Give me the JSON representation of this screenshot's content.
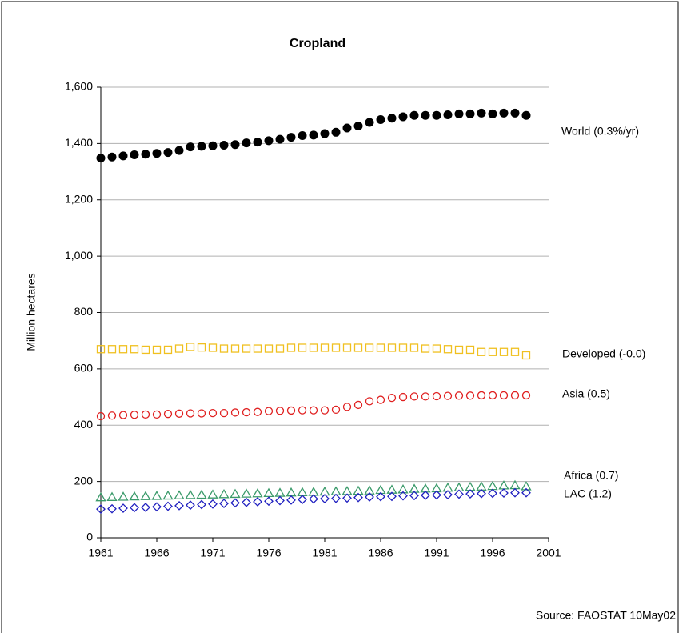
{
  "chart_data": {
    "type": "scatter",
    "title": "Cropland",
    "y_label": "Million hectares",
    "source": "Source: FAOSTAT 10May02",
    "x": [
      1961,
      1962,
      1963,
      1964,
      1965,
      1966,
      1967,
      1968,
      1969,
      1970,
      1971,
      1972,
      1973,
      1974,
      1975,
      1976,
      1977,
      1978,
      1979,
      1980,
      1981,
      1982,
      1983,
      1984,
      1985,
      1986,
      1987,
      1988,
      1989,
      1990,
      1991,
      1992,
      1993,
      1994,
      1995,
      1996,
      1997,
      1998,
      1999
    ],
    "series": [
      {
        "name": "World (0.3%/yr)",
        "color": "#000000",
        "marker": "circle-filled",
        "values": [
          1348,
          1352,
          1356,
          1360,
          1362,
          1365,
          1368,
          1375,
          1388,
          1390,
          1392,
          1394,
          1396,
          1402,
          1405,
          1410,
          1415,
          1422,
          1428,
          1430,
          1435,
          1440,
          1455,
          1462,
          1475,
          1485,
          1490,
          1495,
          1500,
          1500,
          1500,
          1502,
          1505,
          1505,
          1508,
          1505,
          1508,
          1508,
          1500
        ]
      },
      {
        "name": "Developed (-0.0)",
        "color": "#f0c020",
        "marker": "square",
        "values": [
          670,
          670,
          670,
          670,
          668,
          668,
          668,
          672,
          678,
          676,
          675,
          672,
          672,
          672,
          672,
          672,
          672,
          675,
          675,
          675,
          675,
          675,
          675,
          675,
          675,
          675,
          675,
          675,
          675,
          672,
          672,
          670,
          668,
          668,
          660,
          660,
          660,
          660,
          648
        ]
      },
      {
        "name": "Asia (0.5)",
        "color": "#e02020",
        "marker": "circle",
        "values": [
          432,
          434,
          436,
          437,
          438,
          438,
          440,
          441,
          442,
          442,
          443,
          443,
          445,
          446,
          447,
          450,
          451,
          452,
          453,
          453,
          453,
          455,
          465,
          472,
          485,
          490,
          497,
          500,
          502,
          502,
          503,
          504,
          505,
          505,
          506,
          506,
          506,
          506,
          506
        ]
      },
      {
        "name": "Africa (0.7)",
        "color": "#3a9a6a",
        "marker": "triangle",
        "values": [
          143,
          144,
          145,
          146,
          147,
          148,
          149,
          150,
          151,
          152,
          153,
          154,
          155,
          156,
          157,
          158,
          159,
          160,
          161,
          162,
          163,
          164,
          165,
          166,
          167,
          169,
          170,
          171,
          173,
          174,
          175,
          177,
          178,
          180,
          181,
          183,
          185,
          186,
          182
        ]
      },
      {
        "name": "LAC (1.2)",
        "color": "#2020c0",
        "marker": "diamond",
        "values": [
          102,
          103,
          105,
          107,
          108,
          110,
          112,
          114,
          116,
          118,
          120,
          122,
          124,
          126,
          128,
          130,
          132,
          134,
          136,
          138,
          139,
          140,
          141,
          143,
          145,
          146,
          147,
          149,
          150,
          151,
          152,
          153,
          155,
          156,
          157,
          158,
          159,
          160,
          160
        ]
      }
    ],
    "xlim": [
      1961,
      2001
    ],
    "xticks": [
      1961,
      1966,
      1971,
      1976,
      1981,
      1986,
      1991,
      1996,
      2001
    ],
    "ylim": [
      0,
      1600
    ],
    "yticks": [
      0,
      200,
      400,
      600,
      800,
      {
        "value": 1000,
        "label": "1,000"
      },
      {
        "value": 1200,
        "label": "1,200"
      },
      {
        "value": 1400,
        "label": "1,400"
      },
      {
        "value": 1600,
        "label": "1,600"
      }
    ],
    "grid": true
  }
}
